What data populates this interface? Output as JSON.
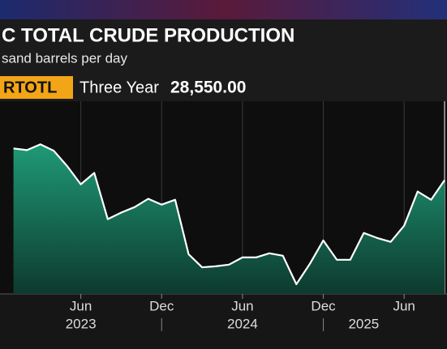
{
  "chart_data": {
    "type": "area",
    "title": "C TOTAL CRUDE PRODUCTION",
    "subtitle": "sand barrels per day",
    "ticker": "RTOTL",
    "period": "Three Year",
    "last_value_label": "28,550.00",
    "x": [
      "2023-01",
      "2023-02",
      "2023-03",
      "2023-04",
      "2023-05",
      "2023-06",
      "2023-07",
      "2023-08",
      "2023-09",
      "2023-10",
      "2023-11",
      "2023-12",
      "2024-01",
      "2024-02",
      "2024-03",
      "2024-04",
      "2024-05",
      "2024-06",
      "2024-07",
      "2024-08",
      "2024-09",
      "2024-10",
      "2024-11",
      "2024-12",
      "2025-01",
      "2025-02",
      "2025-03",
      "2025-04",
      "2025-05",
      "2025-06",
      "2025-07",
      "2025-08",
      "2025-09"
    ],
    "values": [
      29205,
      29170,
      29290,
      29155,
      28835,
      28465,
      28700,
      27745,
      27880,
      27995,
      28165,
      28045,
      28145,
      27020,
      26750,
      26770,
      26805,
      26955,
      26955,
      27040,
      26990,
      26400,
      26820,
      27305,
      26905,
      26905,
      27460,
      27355,
      27275,
      27610,
      28315,
      28145,
      28550
    ],
    "color": "#1d8a6c",
    "xlim": [
      "2022-12",
      "2025-09"
    ],
    "ylim": [
      26200,
      30180
    ],
    "xticks": [
      {
        "value": "2023-06",
        "label": "Jun"
      },
      {
        "value": "2023-12",
        "label": "Dec"
      },
      {
        "value": "2024-06",
        "label": "Jun"
      },
      {
        "value": "2024-12",
        "label": "Dec"
      },
      {
        "value": "2025-06",
        "label": "Jun"
      }
    ],
    "year_labels": [
      {
        "value": "2023-06",
        "label": "2023"
      },
      {
        "value": "2024-06",
        "label": "2024"
      },
      {
        "value": "2025-03",
        "label": "2025"
      }
    ],
    "grid": true
  }
}
